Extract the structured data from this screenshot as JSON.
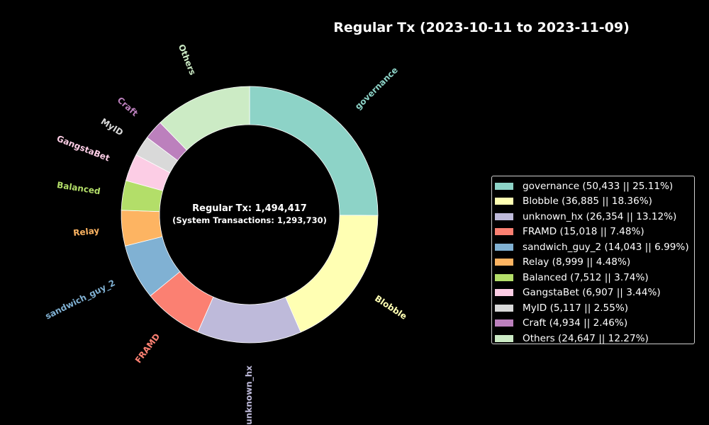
{
  "chart_data": {
    "type": "pie",
    "style": "donut",
    "title": "Regular Tx (2023-10-11 to 2023-11-09)",
    "center_text": "Regular Tx: 1,494,417",
    "center_subtext": "(System Transactions: 1,293,730)",
    "legend_position": "right",
    "background": "#000000",
    "slices": [
      {
        "label": "governance",
        "value": 50433,
        "percent": 25.11,
        "color": "#8dd3c7",
        "legend": "governance (50,433 || 25.11%)"
      },
      {
        "label": "Blobble",
        "value": 36885,
        "percent": 18.36,
        "color": "#ffffb3",
        "legend": "Blobble (36,885 || 18.36%)"
      },
      {
        "label": "unknown_hx",
        "value": 26354,
        "percent": 13.12,
        "color": "#bebada",
        "legend": "unknown_hx (26,354 || 13.12%)"
      },
      {
        "label": "FRAMD",
        "value": 15018,
        "percent": 7.48,
        "color": "#fb8072",
        "legend": "FRAMD (15,018 || 7.48%)"
      },
      {
        "label": "sandwich_guy_2",
        "value": 14043,
        "percent": 6.99,
        "color": "#80b1d3",
        "legend": "sandwich_guy_2 (14,043 || 6.99%)"
      },
      {
        "label": "Relay",
        "value": 8999,
        "percent": 4.48,
        "color": "#fdb462",
        "legend": "Relay (8,999 || 4.48%)"
      },
      {
        "label": "Balanced",
        "value": 7512,
        "percent": 3.74,
        "color": "#b3de69",
        "legend": "Balanced (7,512 || 3.74%)"
      },
      {
        "label": "GangstaBet",
        "value": 6907,
        "percent": 3.44,
        "color": "#fccde5",
        "legend": "GangstaBet (6,907 || 3.44%)"
      },
      {
        "label": "MyID",
        "value": 5117,
        "percent": 2.55,
        "color": "#d9d9d9",
        "legend": "MyID (5,117 || 2.55%)"
      },
      {
        "label": "Craft",
        "value": 4934,
        "percent": 2.46,
        "color": "#bc80bd",
        "legend": "Craft (4,934 || 2.46%)"
      },
      {
        "label": "Others",
        "value": 24647,
        "percent": 12.27,
        "color": "#ccebc5",
        "legend": "Others (24,647 || 12.27%)"
      }
    ]
  }
}
